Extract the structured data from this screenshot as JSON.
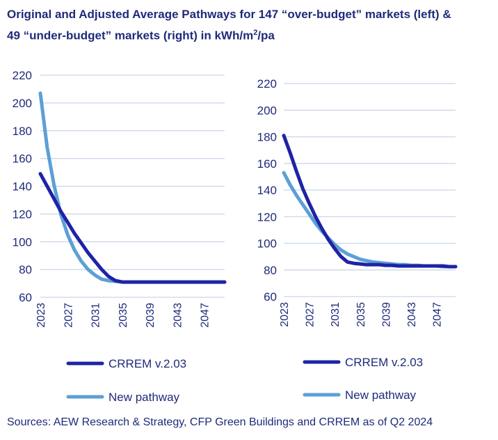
{
  "title": {
    "line1": "Original and Adjusted Average Pathways for 147 “over-budget” markets (left) &",
    "line2_pre": "49 “under-budget” markets (right) in kWh/m",
    "line2_sup": "2",
    "line2_post": "/pa"
  },
  "source": "Sources: AEW Research & Strategy, CFP Green Buildings and CRREM as of Q2 2024",
  "colors": {
    "crrem": "#1e23a6",
    "new_pathway": "#5d9fd6",
    "grid": "#c9d5e8",
    "text": "#1f2a7a"
  },
  "chart_data": [
    {
      "type": "line",
      "panel": "left",
      "x": [
        2023,
        2024,
        2025,
        2026,
        2027,
        2028,
        2029,
        2030,
        2031,
        2032,
        2033,
        2034,
        2035,
        2036,
        2037,
        2038,
        2039,
        2040,
        2041,
        2042,
        2043,
        2044,
        2045,
        2046,
        2047,
        2048,
        2049,
        2050
      ],
      "xticks": [
        "2023",
        "2027",
        "2031",
        "2035",
        "2039",
        "2043",
        "2047"
      ],
      "ylim": [
        60,
        220
      ],
      "yticks": [
        60,
        80,
        100,
        120,
        140,
        160,
        180,
        200,
        220
      ],
      "grid": true,
      "legend_position": "bottom",
      "series": [
        {
          "name": "CRREM v.2.03",
          "color": "#1e23a6",
          "values": [
            149,
            140,
            131,
            122,
            114,
            106,
            99,
            92,
            86,
            80,
            75,
            72,
            71,
            71,
            71,
            71,
            71,
            71,
            71,
            71,
            71,
            71,
            71,
            71,
            71,
            71,
            71,
            71
          ]
        },
        {
          "name": "New pathway",
          "color": "#5d9fd6",
          "values": [
            207,
            168,
            141,
            120,
            105,
            94,
            86,
            80,
            76,
            73,
            72,
            71.5,
            71,
            71,
            71,
            71,
            71,
            71,
            71,
            71,
            71,
            71,
            71,
            71,
            71,
            71,
            71,
            71
          ]
        }
      ]
    },
    {
      "type": "line",
      "panel": "right",
      "x": [
        2023,
        2024,
        2025,
        2026,
        2027,
        2028,
        2029,
        2030,
        2031,
        2032,
        2033,
        2034,
        2035,
        2036,
        2037,
        2038,
        2039,
        2040,
        2041,
        2042,
        2043,
        2044,
        2045,
        2046,
        2047,
        2048,
        2049,
        2050
      ],
      "xticks": [
        "2023",
        "2027",
        "2031",
        "2035",
        "2039",
        "2043",
        "2047"
      ],
      "ylim": [
        60,
        220
      ],
      "yticks": [
        60,
        80,
        100,
        120,
        140,
        160,
        180,
        200,
        220
      ],
      "grid": true,
      "legend_position": "bottom",
      "series": [
        {
          "name": "CRREM v.2.03",
          "color": "#1e23a6",
          "values": [
            181,
            168,
            154,
            141,
            130,
            120,
            111,
            103,
            96,
            90,
            86,
            85,
            84.5,
            84,
            84,
            84,
            83.5,
            83.5,
            83,
            83,
            83,
            83,
            83,
            83,
            83,
            83,
            82.5,
            82.5
          ]
        },
        {
          "name": "New pathway",
          "color": "#5d9fd6",
          "values": [
            153,
            144,
            136,
            129,
            122,
            115,
            109,
            104,
            99,
            95,
            92,
            90,
            88,
            87,
            86,
            85.5,
            85,
            84.5,
            84,
            84,
            83.5,
            83.5,
            83,
            83,
            83,
            82.5,
            82.5,
            82.5
          ]
        }
      ]
    }
  ]
}
